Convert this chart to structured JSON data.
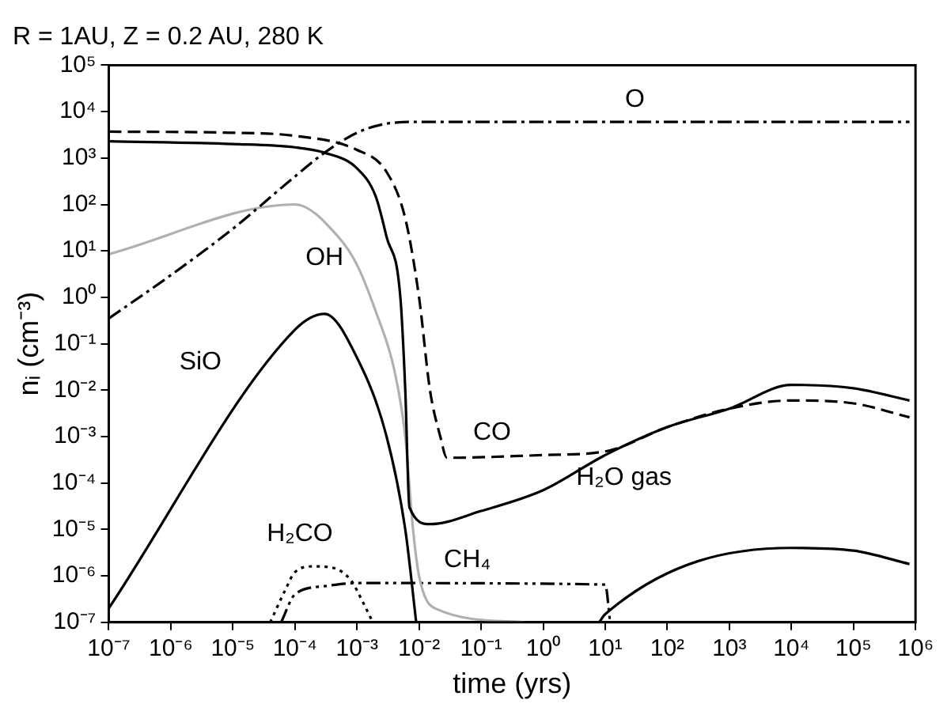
{
  "chart_data": {
    "type": "line",
    "title": "R = 1AU, Z = 0.2 AU, 280 K",
    "xlabel": "time (yrs)",
    "ylabel": "nᵢ (cm⁻³)",
    "log": "xy",
    "grid": false,
    "legend": false,
    "marker": "none",
    "xlim": [
      1e-07,
      1000000.0
    ],
    "ylim": [
      1e-07,
      100000.0
    ],
    "xticks": [
      {
        "value": 1e-07,
        "label": "10⁻⁷"
      },
      {
        "value": 1e-06,
        "label": "10⁻⁶"
      },
      {
        "value": 1e-05,
        "label": "10⁻⁵"
      },
      {
        "value": 0.0001,
        "label": "10⁻⁴"
      },
      {
        "value": 0.001,
        "label": "10⁻³"
      },
      {
        "value": 0.01,
        "label": "10⁻²"
      },
      {
        "value": 0.1,
        "label": "10⁻¹"
      },
      {
        "value": 1,
        "label": "10⁰"
      },
      {
        "value": 10,
        "label": "10¹"
      },
      {
        "value": 100,
        "label": "10²"
      },
      {
        "value": 1000,
        "label": "10³"
      },
      {
        "value": 10000,
        "label": "10⁴"
      },
      {
        "value": 100000,
        "label": "10⁵"
      },
      {
        "value": 1000000,
        "label": "10⁶"
      }
    ],
    "yticks": [
      {
        "value": 1e-07,
        "label": "10⁻⁷"
      },
      {
        "value": 1e-06,
        "label": "10⁻⁶"
      },
      {
        "value": 1e-05,
        "label": "10⁻⁵"
      },
      {
        "value": 0.0001,
        "label": "10⁻⁴"
      },
      {
        "value": 0.001,
        "label": "10⁻³"
      },
      {
        "value": 0.01,
        "label": "10⁻²"
      },
      {
        "value": 0.1,
        "label": "10⁻¹"
      },
      {
        "value": 1,
        "label": "10⁰"
      },
      {
        "value": 10,
        "label": "10¹"
      },
      {
        "value": 100,
        "label": "10²"
      },
      {
        "value": 1000,
        "label": "10³"
      },
      {
        "value": 10000,
        "label": "10⁴"
      },
      {
        "value": 100000,
        "label": "10⁵"
      }
    ],
    "series": [
      {
        "name": "O",
        "color": "#000000",
        "line_style": "dashdot",
        "x": [
          1e-07,
          1e-06,
          1e-05,
          0.0001,
          0.0003,
          0.001,
          0.003,
          0.01,
          800000.0
        ],
        "values": [
          0.35,
          3,
          30,
          400,
          1300,
          3500,
          5500,
          6000,
          6000
        ]
      },
      {
        "name": "CO",
        "color": "#000000",
        "line_style": "dashed",
        "x": [
          1e-07,
          1e-05,
          0.0001,
          0.001,
          0.003,
          0.006,
          0.01,
          0.015,
          0.022,
          0.028,
          1,
          10,
          100,
          1000,
          10000,
          100000,
          800000.0
        ],
        "values": [
          3700,
          3500,
          3000,
          1500,
          500,
          50,
          1,
          0.01,
          0.001,
          0.00035,
          0.0004,
          0.00048,
          0.0016,
          0.004,
          0.006,
          0.0052,
          0.0026
        ]
      },
      {
        "name": "H₂O gas",
        "color": "#000000",
        "line_style": "solid",
        "x": [
          1e-07,
          1e-05,
          0.0001,
          0.0003,
          0.001,
          0.002,
          0.003,
          0.005,
          0.006,
          0.007,
          0.015,
          0.1,
          1,
          10,
          100,
          1000,
          10000,
          100000,
          800000.0
        ],
        "values": [
          2300,
          2000,
          1700,
          1300,
          600,
          150,
          20,
          1,
          0.01,
          3e-05,
          1.3e-05,
          2.5e-05,
          7e-05,
          0.0004,
          0.0016,
          0.004,
          0.013,
          0.011,
          0.006
        ]
      },
      {
        "name": "OH",
        "color": "#b0b0b0",
        "line_style": "solid",
        "x": [
          1e-07,
          0.0001,
          0.0005,
          0.001,
          0.002,
          0.004,
          0.006,
          0.008,
          0.01,
          0.018,
          0.5
        ],
        "values": [
          8.5,
          100,
          20,
          5,
          0.5,
          0.027,
          0.001,
          1e-05,
          1e-06,
          2e-07,
          1e-07
        ]
      },
      {
        "name": "SiO",
        "color": "#000000",
        "line_style": "solid",
        "x": [
          1e-07,
          0.0001,
          0.0003,
          0.001,
          0.003,
          0.006,
          0.009,
          1,
          8,
          10,
          10000,
          100000,
          800000.0
        ],
        "values": [
          2e-07,
          0.2,
          0.44,
          0.05,
          0.001,
          1e-05,
          1e-07,
          null,
          1e-07,
          1.5e-07,
          4e-06,
          3.5e-06,
          1.8e-06
        ]
      },
      {
        "name": "H₂CO",
        "color": "#000000",
        "line_style": "dotted",
        "x": [
          4e-05,
          7e-05,
          0.0001,
          0.0002,
          0.0004,
          0.0008,
          0.0012,
          0.0018
        ],
        "values": [
          1e-07,
          5e-07,
          1.2e-06,
          1.6e-06,
          1.5e-06,
          8e-07,
          3e-07,
          1e-07
        ]
      },
      {
        "name": "CH₄",
        "color": "#000000",
        "line_style": "dashdotdot",
        "x": [
          6e-05,
          0.0001,
          0.0003,
          0.001,
          10,
          12
        ],
        "values": [
          1e-07,
          4e-07,
          6e-07,
          7e-07,
          6.5e-07,
          1e-07
        ]
      }
    ]
  }
}
